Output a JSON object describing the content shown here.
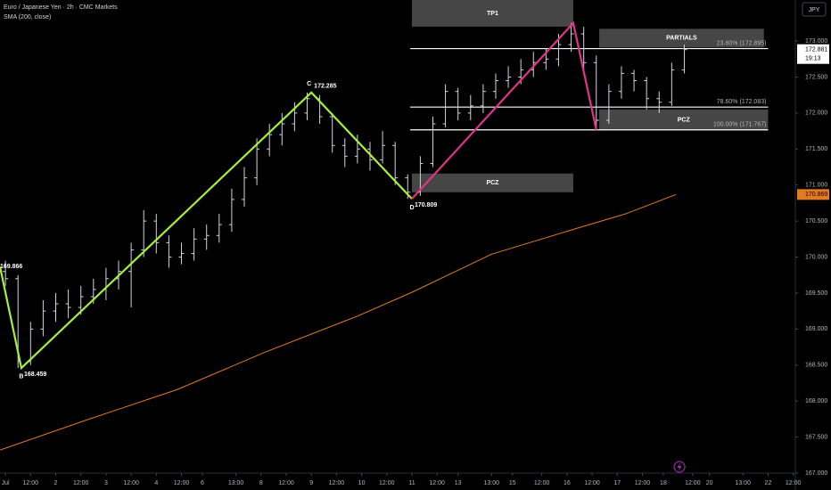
{
  "chart_data": {
    "type": "ohlc",
    "title": "Euro / Japanese Yen · 2h · CMC Markets",
    "subtitle": "SMA (200, close)",
    "currency": "JPY",
    "bar_color": "#d1d4dc",
    "background": "#000000",
    "xlim": [
      -1.3,
      188.5
    ],
    "ylim": [
      167,
      173.57
    ],
    "xticks": [
      {
        "value": 0,
        "label": "Jul"
      },
      {
        "value": 6,
        "label": "12:00"
      },
      {
        "value": 12,
        "label": "2"
      },
      {
        "value": 18,
        "label": "12:00"
      },
      {
        "value": 24,
        "label": "3"
      },
      {
        "value": 30,
        "label": "12:00"
      },
      {
        "value": 36,
        "label": "4"
      },
      {
        "value": 42,
        "label": "12:00"
      },
      {
        "value": 47,
        "label": "6"
      },
      {
        "value": 55,
        "label": "13:00"
      },
      {
        "value": 61,
        "label": "8"
      },
      {
        "value": 67,
        "label": "12:00"
      },
      {
        "value": 73,
        "label": "9"
      },
      {
        "value": 79,
        "label": "12:00"
      },
      {
        "value": 85,
        "label": "10"
      },
      {
        "value": 91,
        "label": "12:00"
      },
      {
        "value": 97,
        "label": "11"
      },
      {
        "value": 103,
        "label": "12:00"
      },
      {
        "value": 108,
        "label": "13"
      },
      {
        "value": 116,
        "label": "13:00"
      },
      {
        "value": 121,
        "label": "15"
      },
      {
        "value": 128,
        "label": "12:00"
      },
      {
        "value": 134,
        "label": "16"
      },
      {
        "value": 140,
        "label": "12:00"
      },
      {
        "value": 146,
        "label": "17"
      },
      {
        "value": 152,
        "label": "12:00"
      },
      {
        "value": 157,
        "label": "18"
      },
      {
        "value": 164,
        "label": "12:00"
      },
      {
        "value": 168,
        "label": "20"
      },
      {
        "value": 176,
        "label": "13:00"
      },
      {
        "value": 182,
        "label": "22"
      },
      {
        "value": 188,
        "label": "12:00"
      }
    ],
    "yticks": [
      {
        "value": 167,
        "label": "167.000"
      },
      {
        "value": 167.5,
        "label": "167.500"
      },
      {
        "value": 168,
        "label": "168.000"
      },
      {
        "value": 168.5,
        "label": "168.500"
      },
      {
        "value": 169,
        "label": "169.000"
      },
      {
        "value": 169.5,
        "label": "169.500"
      },
      {
        "value": 170,
        "label": "170.000"
      },
      {
        "value": 170.5,
        "label": "170.500"
      },
      {
        "value": 171,
        "label": "171.000"
      },
      {
        "value": 171.5,
        "label": "171.500"
      },
      {
        "value": 172,
        "label": "172.000"
      },
      {
        "value": 172.5,
        "label": "172.500"
      },
      {
        "value": 173,
        "label": "173.000"
      }
    ],
    "x": [
      0,
      3,
      6,
      9,
      12,
      15,
      18,
      21,
      24,
      27,
      30,
      33,
      36,
      39,
      42,
      45,
      48,
      51,
      54,
      57,
      60,
      63,
      66,
      69,
      72,
      75,
      78,
      81,
      84,
      87,
      90,
      93,
      96,
      99,
      102,
      105,
      108,
      111,
      114,
      117,
      120,
      123,
      126,
      129,
      132,
      135,
      138,
      141,
      144,
      147,
      150,
      153,
      156,
      159,
      162
    ],
    "ohlc": [
      [
        169.8,
        169.95,
        169.6,
        169.7
      ],
      [
        169.7,
        169.75,
        168.459,
        168.55
      ],
      [
        168.55,
        169.1,
        168.5,
        169.0
      ],
      [
        169.0,
        169.4,
        168.9,
        169.25
      ],
      [
        169.25,
        169.5,
        169.1,
        169.35
      ],
      [
        169.35,
        169.55,
        169.15,
        169.3
      ],
      [
        169.3,
        169.6,
        169.2,
        169.45
      ],
      [
        169.45,
        169.7,
        169.35,
        169.55
      ],
      [
        169.55,
        169.85,
        169.4,
        169.7
      ],
      [
        169.7,
        169.95,
        169.55,
        169.8
      ],
      [
        169.8,
        170.2,
        169.3,
        170.1
      ],
      [
        170.1,
        170.65,
        170.0,
        170.5
      ],
      [
        170.5,
        170.6,
        170.05,
        170.2
      ],
      [
        170.2,
        170.3,
        169.85,
        170.0
      ],
      [
        170.0,
        170.2,
        169.9,
        170.05
      ],
      [
        170.05,
        170.4,
        169.95,
        170.25
      ],
      [
        170.25,
        170.45,
        170.1,
        170.3
      ],
      [
        170.3,
        170.6,
        170.2,
        170.45
      ],
      [
        170.45,
        170.95,
        170.35,
        170.8
      ],
      [
        170.8,
        171.25,
        170.7,
        171.1
      ],
      [
        171.1,
        171.65,
        171.0,
        171.5
      ],
      [
        171.5,
        171.85,
        171.4,
        171.7
      ],
      [
        171.7,
        172.0,
        171.55,
        171.85
      ],
      [
        171.85,
        172.15,
        171.75,
        172.0
      ],
      [
        172.0,
        172.285,
        171.9,
        172.2
      ],
      [
        172.2,
        172.25,
        171.85,
        171.95
      ],
      [
        171.95,
        172.0,
        171.45,
        171.55
      ],
      [
        171.55,
        171.65,
        171.25,
        171.4
      ],
      [
        171.4,
        171.7,
        171.3,
        171.5
      ],
      [
        171.5,
        171.6,
        171.2,
        171.35
      ],
      [
        171.35,
        171.75,
        171.3,
        171.55
      ],
      [
        171.55,
        171.6,
        171.0,
        171.1
      ],
      [
        171.1,
        171.15,
        170.809,
        170.9
      ],
      [
        170.9,
        171.4,
        170.85,
        171.3
      ],
      [
        171.3,
        171.95,
        171.25,
        171.85
      ],
      [
        171.85,
        172.4,
        171.8,
        172.3
      ],
      [
        172.3,
        172.35,
        171.9,
        172.0
      ],
      [
        172.0,
        172.25,
        171.9,
        172.1
      ],
      [
        172.1,
        172.4,
        172.0,
        172.3
      ],
      [
        172.3,
        172.55,
        172.2,
        172.45
      ],
      [
        172.45,
        172.65,
        172.35,
        172.5
      ],
      [
        172.5,
        172.75,
        172.4,
        172.6
      ],
      [
        172.6,
        172.85,
        172.5,
        172.7
      ],
      [
        172.7,
        172.9,
        172.6,
        172.75
      ],
      [
        172.75,
        173.1,
        172.65,
        172.95
      ],
      [
        172.95,
        173.25,
        172.85,
        173.1
      ],
      [
        173.1,
        173.2,
        172.6,
        172.7
      ],
      [
        172.7,
        172.8,
        171.767,
        171.9
      ],
      [
        171.9,
        172.4,
        171.85,
        172.3
      ],
      [
        172.3,
        172.65,
        172.2,
        172.55
      ],
      [
        172.55,
        172.6,
        172.3,
        172.45
      ],
      [
        172.45,
        172.5,
        172.05,
        172.2
      ],
      [
        172.2,
        172.3,
        172.0,
        172.15
      ],
      [
        172.15,
        172.7,
        172.1,
        172.6
      ],
      [
        172.6,
        172.95,
        172.55,
        172.881
      ]
    ],
    "countdown": "19:13",
    "sma": {
      "color": "#e07b24",
      "x": [
        -1.3,
        20,
        41,
        62,
        84,
        97,
        116,
        137,
        148,
        160
      ],
      "values": [
        167.32,
        167.75,
        168.16,
        168.68,
        169.18,
        169.51,
        170.04,
        170.41,
        170.6,
        170.869
      ]
    },
    "patterns": [
      {
        "color": "#a6f03c",
        "x": [
          -1.3,
          3.8,
          73,
          97
        ],
        "values": [
          169.866,
          168.459,
          172.285,
          170.809
        ],
        "point_labels": [
          null,
          "B",
          "C",
          "D"
        ]
      },
      {
        "color": "#e0338a",
        "x": [
          97,
          135.5,
          141
        ],
        "values": [
          170.809,
          173.25,
          171.767
        ]
      }
    ],
    "levels": [
      {
        "value": 172.895,
        "label": "23.60% (172.895)"
      },
      {
        "value": 172.083,
        "label": "78.60% (172.083)"
      },
      {
        "value": 171.767,
        "label": "100.00% (171.767)"
      }
    ],
    "levels_x": [
      96.6,
      182
    ],
    "zones": [
      {
        "label": "TP1",
        "x": [
          97,
          135.5
        ],
        "y": [
          173.2,
          173.57
        ]
      },
      {
        "label": "PARTIALS",
        "x": [
          141.7,
          181
        ],
        "y": [
          172.91,
          173.17
        ]
      },
      {
        "label": "PCZ",
        "x": [
          141.7,
          182
        ],
        "y": [
          171.76,
          172.05
        ]
      },
      {
        "label": "PCZ",
        "x": [
          97,
          135.5
        ],
        "y": [
          170.9,
          171.16
        ]
      }
    ]
  }
}
